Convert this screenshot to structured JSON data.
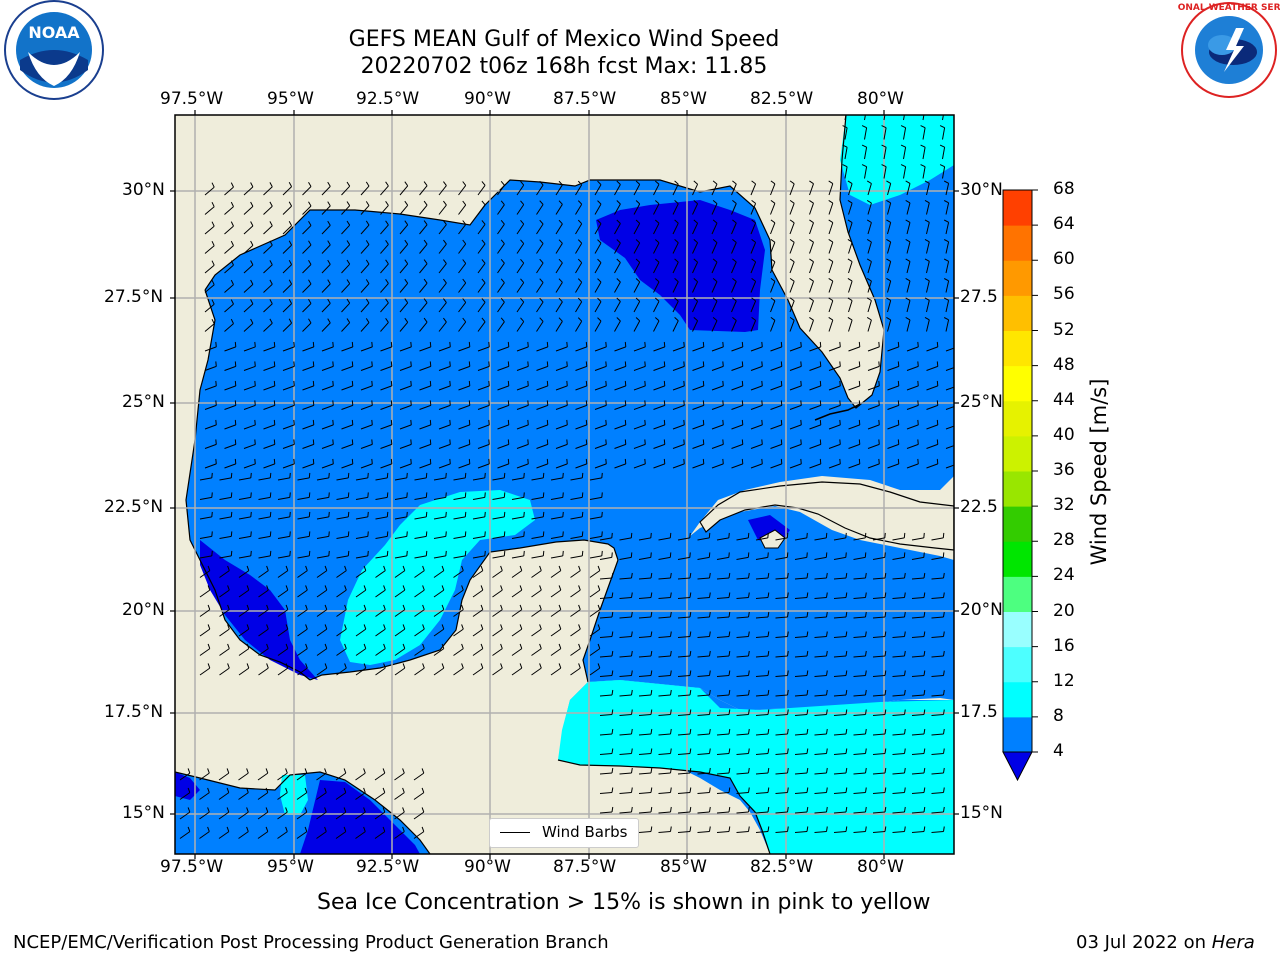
{
  "title": {
    "line1": "GEFS MEAN Gulf of Mexico Wind Speed",
    "line2": "20220702 t06z 168h fcst   Max: 11.85"
  },
  "map": {
    "lon_labels": [
      "97.5°W",
      "95°W",
      "92.5°W",
      "90°W",
      "87.5°W",
      "85°W",
      "82.5°W",
      "80°W"
    ],
    "lat_labels_left": [
      "30°N",
      "27.5°N",
      "25°N",
      "22.5°N",
      "20°N",
      "17.5°N",
      "15°N"
    ],
    "lat_labels_right": [
      "30°N",
      "27.5",
      "25°N",
      "22.5",
      "20°N",
      "17.5",
      "15°N"
    ],
    "legend_label": "Wind Barbs",
    "colors": {
      "land": "#efeddb",
      "band_4_8": "#0080ff",
      "band_0_4": "#0000e6",
      "band_8_12": "#00ffff",
      "band_12_16": "#4dffff"
    }
  },
  "colorbar": {
    "label": "Wind Speed [m/s]",
    "ticks": [
      "4",
      "8",
      "12",
      "16",
      "20",
      "24",
      "28",
      "32",
      "36",
      "40",
      "44",
      "48",
      "52",
      "56",
      "60",
      "64",
      "68"
    ],
    "colors": [
      "#0080ff",
      "#00ffff",
      "#4dffff",
      "#99ffff",
      "#4dff80",
      "#00e600",
      "#33cc00",
      "#99e600",
      "#ccf200",
      "#e6f200",
      "#ffff00",
      "#ffe600",
      "#ffbf00",
      "#ff9900",
      "#ff7300",
      "#ff4000"
    ],
    "extend_color": "#0000e6"
  },
  "caption": "Sea Ice Concentration > 15% is shown in pink to yellow",
  "footer": {
    "left": "NCEP/EMC/Verification Post Processing Product Generation Branch",
    "right_date": "03 Jul 2022 on ",
    "right_machine": "Hera"
  },
  "logos": {
    "noaa_text": "NOAA",
    "nws_text": "NATIONAL WEATHER SERVICE"
  }
}
